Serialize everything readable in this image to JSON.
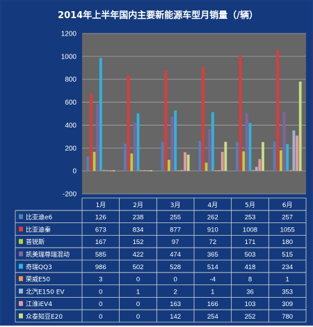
{
  "colors": {
    "frame_bg": "#143a7d",
    "plot_bg": "#666666",
    "grid": "#a6a6a6",
    "text": "#ffffff",
    "table_line": "#d9d9d9"
  },
  "chart_data": {
    "type": "bar",
    "title": "2014年上半年国内主要新能源车型月销量（/辆）",
    "xlabel": "",
    "ylabel": "",
    "categories": [
      "1月",
      "2月",
      "3月",
      "4月",
      "5月",
      "6月"
    ],
    "ylim": [
      -200,
      1200
    ],
    "yticks": [
      -200,
      0,
      200,
      400,
      600,
      800,
      1000,
      1200
    ],
    "grid": true,
    "legend": "table-below",
    "series": [
      {
        "name": "比亚迪e6",
        "color": "#4f81bd",
        "values": [
          126,
          238,
          255,
          262,
          253,
          257
        ]
      },
      {
        "name": "比亚迪秦",
        "color": "#e03a3a",
        "values": [
          673,
          834,
          877,
          910,
          1008,
          1055
        ]
      },
      {
        "name": "普锐斯",
        "color": "#b5d23c",
        "values": [
          167,
          152,
          97,
          72,
          171,
          180
        ]
      },
      {
        "name": "凯美瑞尊瑞混动",
        "color": "#8064a2",
        "values": [
          585,
          422,
          474,
          365,
          503,
          515
        ]
      },
      {
        "name": "奇瑞QQ3",
        "color": "#2fb4e0",
        "values": [
          986,
          502,
          528,
          514,
          418,
          234
        ]
      },
      {
        "name": "荣威E50",
        "color": "#f79646",
        "values": [
          3,
          0,
          0,
          -4,
          8,
          1
        ]
      },
      {
        "name": "北汽E150 EV",
        "color": "#9db3d8",
        "values": [
          0,
          1,
          2,
          1,
          36,
          353
        ]
      },
      {
        "name": "江淮iEV4",
        "color": "#e89a9a",
        "values": [
          0,
          0,
          163,
          166,
          103,
          309
        ]
      },
      {
        "name": "众泰知豆E20",
        "color": "#c9dd84",
        "values": [
          0,
          0,
          142,
          254,
          252,
          780
        ]
      }
    ]
  }
}
